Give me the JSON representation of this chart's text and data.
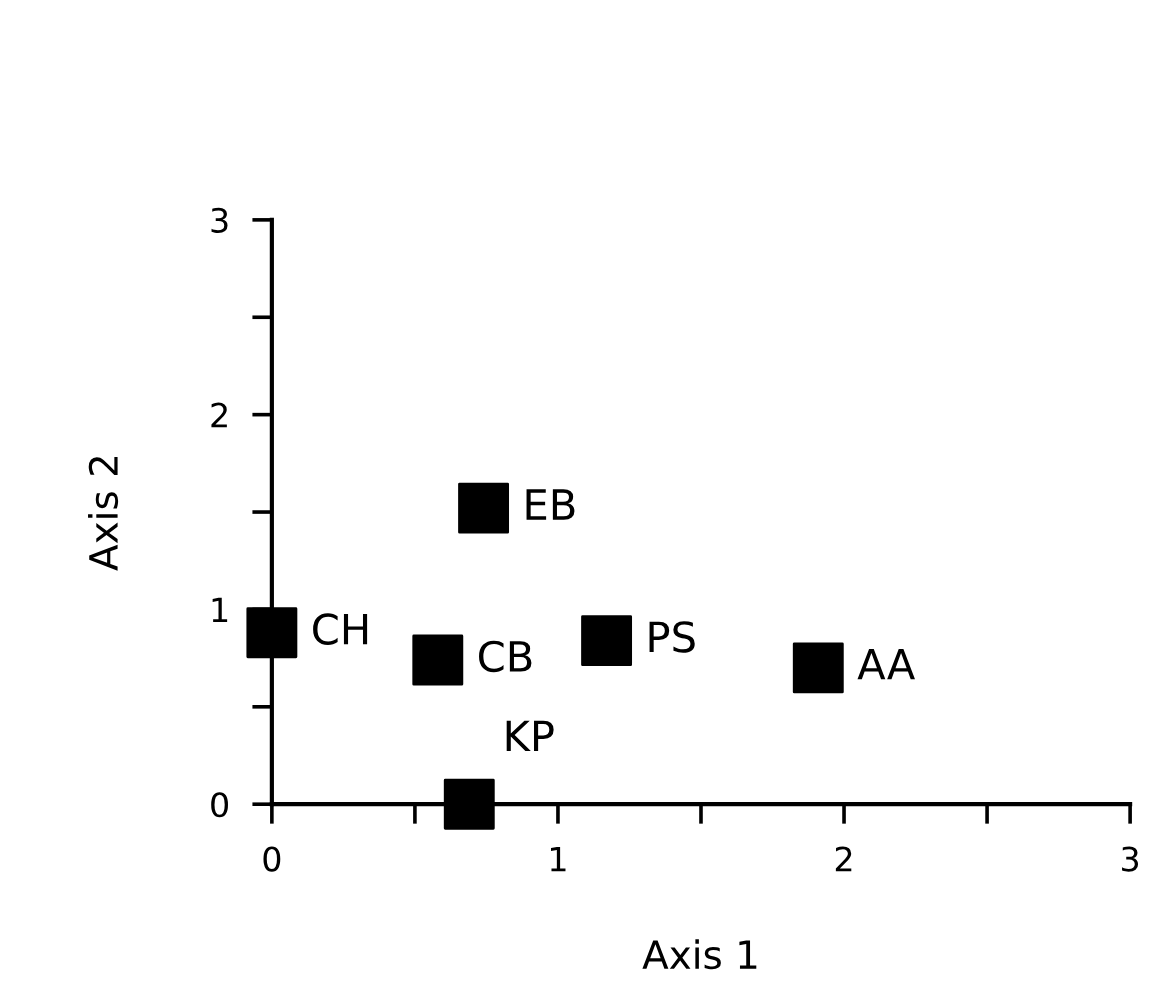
{
  "chart_data": {
    "type": "scatter",
    "xlabel": "Axis 1",
    "ylabel": "Axis 2",
    "x": [
      0.74,
      0,
      0.58,
      1.17,
      1.91,
      0.69
    ],
    "values": [
      1.52,
      0.88,
      0.74,
      0.84,
      0.7,
      0
    ],
    "color": "#000000",
    "marker": "square",
    "grid": false,
    "xlim": [
      0,
      3
    ],
    "ylim": [
      0,
      3
    ],
    "xticks": [
      0,
      {
        "value": 0.5,
        "label": null
      },
      1,
      {
        "value": 1.5,
        "label": null
      },
      2,
      {
        "value": 2.5,
        "label": null
      },
      3
    ],
    "yticks": [
      0,
      {
        "value": 0.5,
        "label": null
      },
      1,
      {
        "value": 1.5,
        "label": null
      },
      2,
      {
        "value": 2.5,
        "label": null
      },
      3
    ],
    "annotations": [
      {
        "text": "EB",
        "x": 0.74,
        "y": 1.52
      },
      {
        "text": "CH",
        "x": 0,
        "y": 0.88
      },
      {
        "text": "CB",
        "x": 0.58,
        "y": 0.74
      },
      {
        "text": "PS",
        "x": 1.17,
        "y": 0.84
      },
      {
        "text": "AA",
        "x": 1.91,
        "y": 0.7
      },
      {
        "text": "KP",
        "x": 0.69,
        "y": 0
      }
    ]
  }
}
